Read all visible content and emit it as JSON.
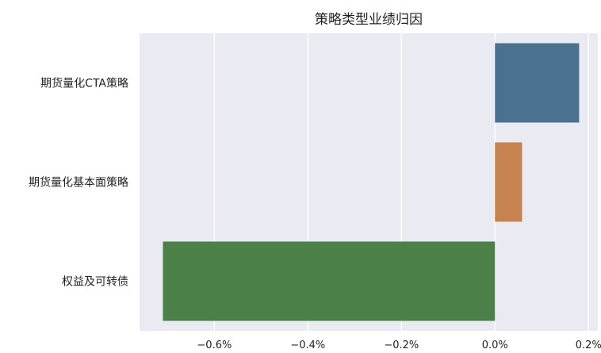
{
  "chart_data": {
    "type": "bar",
    "orientation": "horizontal",
    "title": "策略类型业绩归因",
    "xlabel": "",
    "ylabel": "",
    "categories": [
      "期货量化CTA策略",
      "期货量化基本面策略",
      "权益及可转债"
    ],
    "values": [
      0.18,
      0.058,
      -0.71
    ],
    "unit": "%",
    "xlim": [
      -0.76,
      0.22
    ],
    "xticks": [
      -0.6,
      -0.4,
      -0.2,
      0.0,
      0.2
    ],
    "xtick_labels": [
      "−0.6%",
      "−0.4%",
      "−0.2%",
      "0.0%",
      "0.2%"
    ],
    "colors": [
      "#4a7190",
      "#c7834f",
      "#4b8049"
    ],
    "grid": true,
    "legend": "none",
    "background": "#eaeaf2"
  }
}
